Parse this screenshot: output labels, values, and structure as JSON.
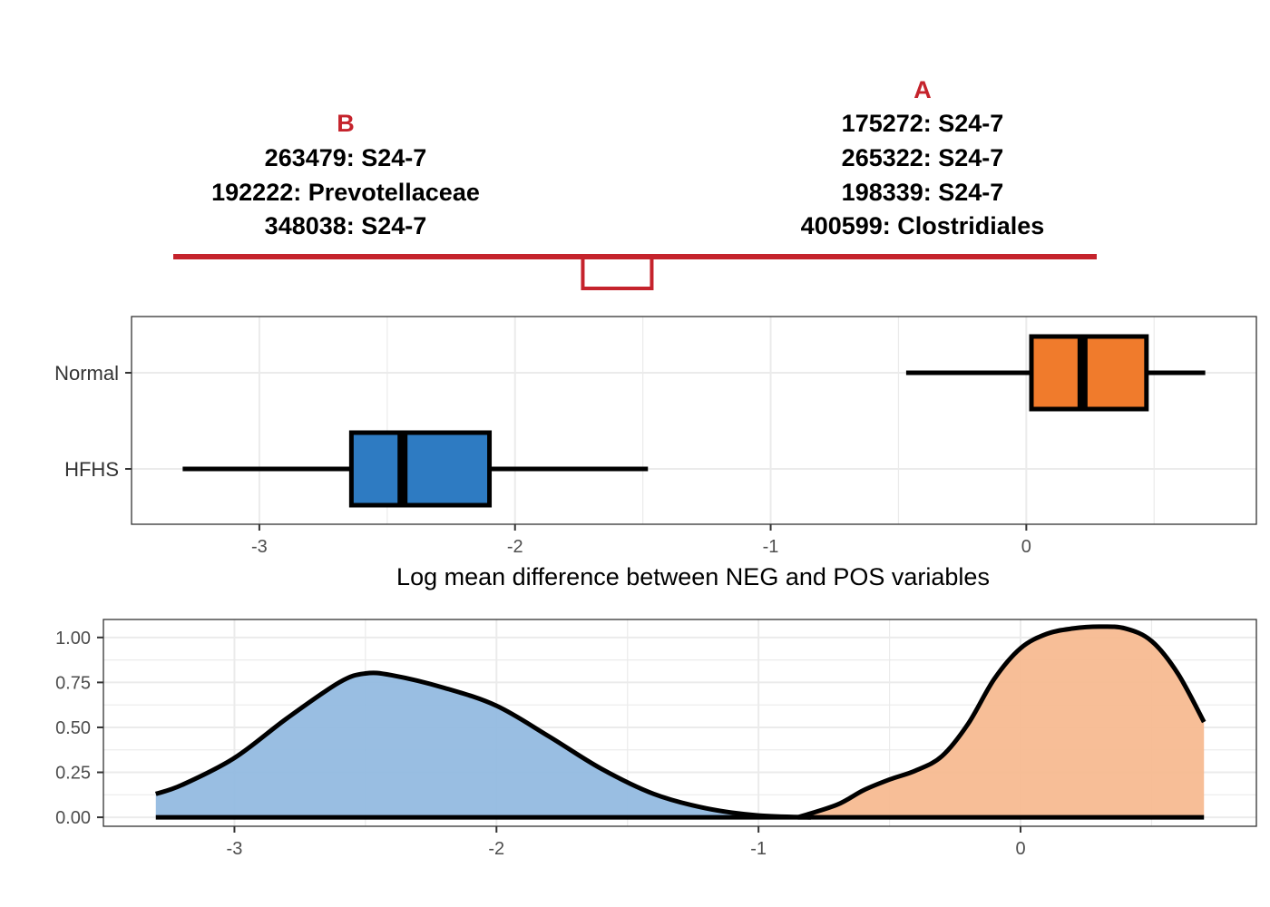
{
  "colors": {
    "accent_red": "#c5232c",
    "hfhs_fill": "#2e7bc2",
    "normal_fill": "#f07b2c",
    "hfhs_density": "#93bbe0",
    "normal_density": "#f7bb91",
    "grid": "#ebebeb",
    "panel_border": "#333333"
  },
  "balance": {
    "left": {
      "header": "B",
      "taxa": [
        "263479: S24-7",
        "192222: Prevotellaceae",
        "348038: S24-7"
      ]
    },
    "right": {
      "header": "A",
      "taxa": [
        "175272: S24-7",
        "265322: S24-7",
        "198339: S24-7",
        "400599: Clostridiales"
      ]
    },
    "fulcrum_x": -1.6
  },
  "chart_data": [
    {
      "type": "box",
      "xlabel": "Log mean difference between NEG and POS variables",
      "xlim": [
        -3.5,
        0.9
      ],
      "xticks": [
        -3,
        -2,
        -1,
        0
      ],
      "groups": [
        {
          "name": "Normal",
          "color": "#f07b2c",
          "whisker_low": -0.47,
          "q1": 0.02,
          "median": 0.22,
          "q3": 0.47,
          "whisker_high": 0.7
        },
        {
          "name": "HFHS",
          "color": "#2e7bc2",
          "whisker_low": -3.3,
          "q1": -2.64,
          "median": -2.44,
          "q3": -2.1,
          "whisker_high": -1.48
        }
      ],
      "grid": true
    },
    {
      "type": "area",
      "xlim": [
        -3.5,
        0.9
      ],
      "ylim": [
        -0.05,
        1.1
      ],
      "xticks": [
        -3,
        -2,
        -1,
        0
      ],
      "yticks": [
        0.0,
        0.25,
        0.5,
        0.75,
        1.0
      ],
      "ytick_labels": [
        "0.00",
        "0.25",
        "0.50",
        "0.75",
        "1.00"
      ],
      "series": [
        {
          "color": "#93bbe0",
          "x": [
            -3.3,
            -3.2,
            -3.0,
            -2.8,
            -2.6,
            -2.5,
            -2.4,
            -2.2,
            -2.0,
            -1.8,
            -1.6,
            -1.4,
            -1.2,
            -1.0,
            -0.8
          ],
          "y": [
            0.13,
            0.18,
            0.33,
            0.55,
            0.75,
            0.8,
            0.79,
            0.72,
            0.62,
            0.45,
            0.27,
            0.13,
            0.05,
            0.01,
            0.0
          ]
        },
        {
          "color": "#f7bb91",
          "x": [
            -0.85,
            -0.7,
            -0.6,
            -0.5,
            -0.4,
            -0.3,
            -0.2,
            -0.1,
            0.0,
            0.1,
            0.2,
            0.3,
            0.4,
            0.5,
            0.6,
            0.7
          ],
          "y": [
            0.0,
            0.07,
            0.15,
            0.21,
            0.26,
            0.34,
            0.52,
            0.77,
            0.94,
            1.02,
            1.05,
            1.06,
            1.05,
            0.98,
            0.8,
            0.53
          ]
        }
      ],
      "grid": true
    }
  ]
}
